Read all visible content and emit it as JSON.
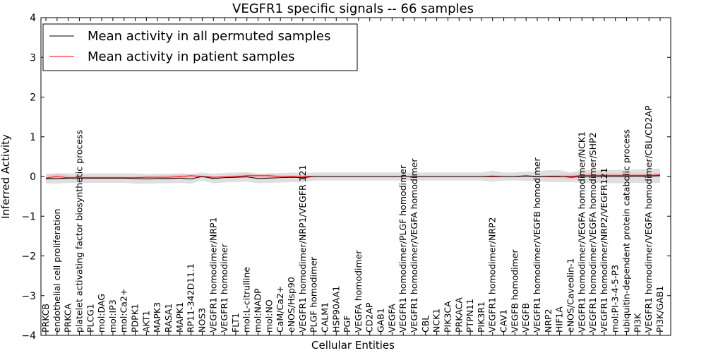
{
  "chart_data": {
    "type": "line",
    "title": "VEGFR1 specific signals -- 66 samples",
    "xlabel": "Cellular Entities",
    "ylabel": "Inferred Activity",
    "ylim": [
      -4,
      4
    ],
    "yticks": [
      -4,
      -3,
      -2,
      -1,
      0,
      1,
      2,
      3,
      4
    ],
    "grid": false,
    "legend_position": "top-left",
    "categories": [
      "PRKCB",
      "endothelial cell proliferation",
      "PRKCA",
      "platelet activating factor biosynthetic process",
      "PLCG1",
      "mol:DAG",
      "mol:IP3",
      "mol:Ca2+",
      "PDPK1",
      "AKT1",
      "MAPK3",
      "RASA1",
      "MAPK1",
      "RP11-342D11.1",
      "NOS3",
      "VEGFR1 homodimer/NRP1",
      "VEGFR1 homodimer",
      "FLT1",
      "mol:L-citrulline",
      "mol:NADP",
      "mol:NO",
      "CaM/Ca2+",
      "eNOS/Hsp90",
      "VEGFR1 homodimer/NRP1/VEGFR 121",
      "PLGF homodimer",
      "CALM1",
      "HSP90AA1",
      "PGF",
      "VEGFA homodimer",
      "CD2AP",
      "GAB1",
      "VEGFA",
      "VEGFR1 homodimer/PLGF homodimer",
      "VEGFR1 homodimer/VEGFA homodimer",
      "CBL",
      "NCK1",
      "PIK3CA",
      "PRKACA",
      "PTPN11",
      "PIK3R1",
      "VEGFR1 homodimer/NRP2",
      "CAV1",
      "VEGFB homodimer",
      "VEGFB",
      "VEGFR1 homodimer/VEGFB homodimer",
      "NRP2",
      "HIF1A",
      "eNOS/Caveolin-1",
      "VEGFR1 homodimer/VEGFA homodimer/NCK1",
      "VEGFR1 homodimer/VEGFA homodimer/SHP2",
      "VEGFR1 homodimer/NRP2/VEGFR121",
      "mol:PI-3-4-5-P3",
      "ubiquitin-dependent protein catabolic process",
      "PI3K",
      "VEGFR1 homodimer/VEGFA homodimer/CBL/CD2AP",
      "PI3K/GAB1"
    ],
    "series": [
      {
        "name": "Mean activity in all permuted samples",
        "color": "#000000",
        "band_color": "#d9d9d9",
        "values": [
          -0.05,
          -0.05,
          -0.04,
          -0.04,
          -0.04,
          -0.04,
          -0.04,
          -0.04,
          -0.05,
          -0.06,
          -0.05,
          -0.05,
          -0.04,
          -0.06,
          0.0,
          -0.05,
          -0.03,
          -0.02,
          -0.01,
          -0.05,
          -0.04,
          -0.03,
          -0.02,
          -0.03,
          0.0,
          0.0,
          0.0,
          0.0,
          0.0,
          0.0,
          0.0,
          0.0,
          0.0,
          0.0,
          0.0,
          0.0,
          0.0,
          0.0,
          0.0,
          0.0,
          0.01,
          0.0,
          0.0,
          0.01,
          0.0,
          0.01,
          0.01,
          -0.02,
          0.0,
          0.0,
          0.0,
          0.0,
          0.0,
          0.01,
          0.01,
          0.02
        ],
        "spread": [
          0.12,
          0.13,
          0.12,
          0.12,
          0.12,
          0.12,
          0.12,
          0.12,
          0.13,
          0.12,
          0.12,
          0.12,
          0.12,
          0.12,
          0.1,
          0.12,
          0.12,
          0.12,
          0.12,
          0.12,
          0.12,
          0.12,
          0.12,
          0.12,
          0.1,
          0.1,
          0.1,
          0.1,
          0.1,
          0.1,
          0.1,
          0.1,
          0.1,
          0.1,
          0.1,
          0.1,
          0.1,
          0.1,
          0.1,
          0.1,
          0.14,
          0.1,
          0.1,
          0.12,
          0.12,
          0.15,
          0.15,
          0.12,
          0.16,
          0.16,
          0.16,
          0.17,
          0.17,
          0.17,
          0.18,
          0.18
        ]
      },
      {
        "name": "Mean activity in patient samples",
        "color": "#ff0000",
        "band_color": "#f4b3b3",
        "values": [
          -0.04,
          0.0,
          -0.03,
          -0.03,
          -0.03,
          -0.03,
          -0.03,
          -0.03,
          -0.03,
          -0.02,
          -0.02,
          -0.02,
          0.0,
          0.02,
          0.0,
          -0.02,
          -0.01,
          0.0,
          0.02,
          0.02,
          0.02,
          0.0,
          0.0,
          0.0,
          0.0,
          0.0,
          0.0,
          0.0,
          0.0,
          0.0,
          0.0,
          0.0,
          0.0,
          0.0,
          0.0,
          0.0,
          0.0,
          0.0,
          0.0,
          0.0,
          0.0,
          0.0,
          0.0,
          0.02,
          0.0,
          0.0,
          0.0,
          0.0,
          0.03,
          0.03,
          0.03,
          0.03,
          0.03,
          0.03,
          0.03,
          0.04
        ],
        "spread": [
          0.05,
          0.08,
          0.05,
          0.04,
          0.04,
          0.04,
          0.04,
          0.04,
          0.04,
          0.04,
          0.04,
          0.05,
          0.05,
          0.04,
          0.03,
          0.03,
          0.03,
          0.04,
          0.05,
          0.05,
          0.05,
          0.03,
          0.03,
          0.02,
          0.02,
          0.02,
          0.02,
          0.02,
          0.02,
          0.02,
          0.02,
          0.02,
          0.02,
          0.02,
          0.02,
          0.02,
          0.02,
          0.02,
          0.02,
          0.02,
          0.03,
          0.02,
          0.02,
          0.03,
          0.02,
          0.03,
          0.04,
          0.06,
          0.05,
          0.05,
          0.05,
          0.05,
          0.05,
          0.05,
          0.05,
          0.05
        ]
      }
    ]
  }
}
